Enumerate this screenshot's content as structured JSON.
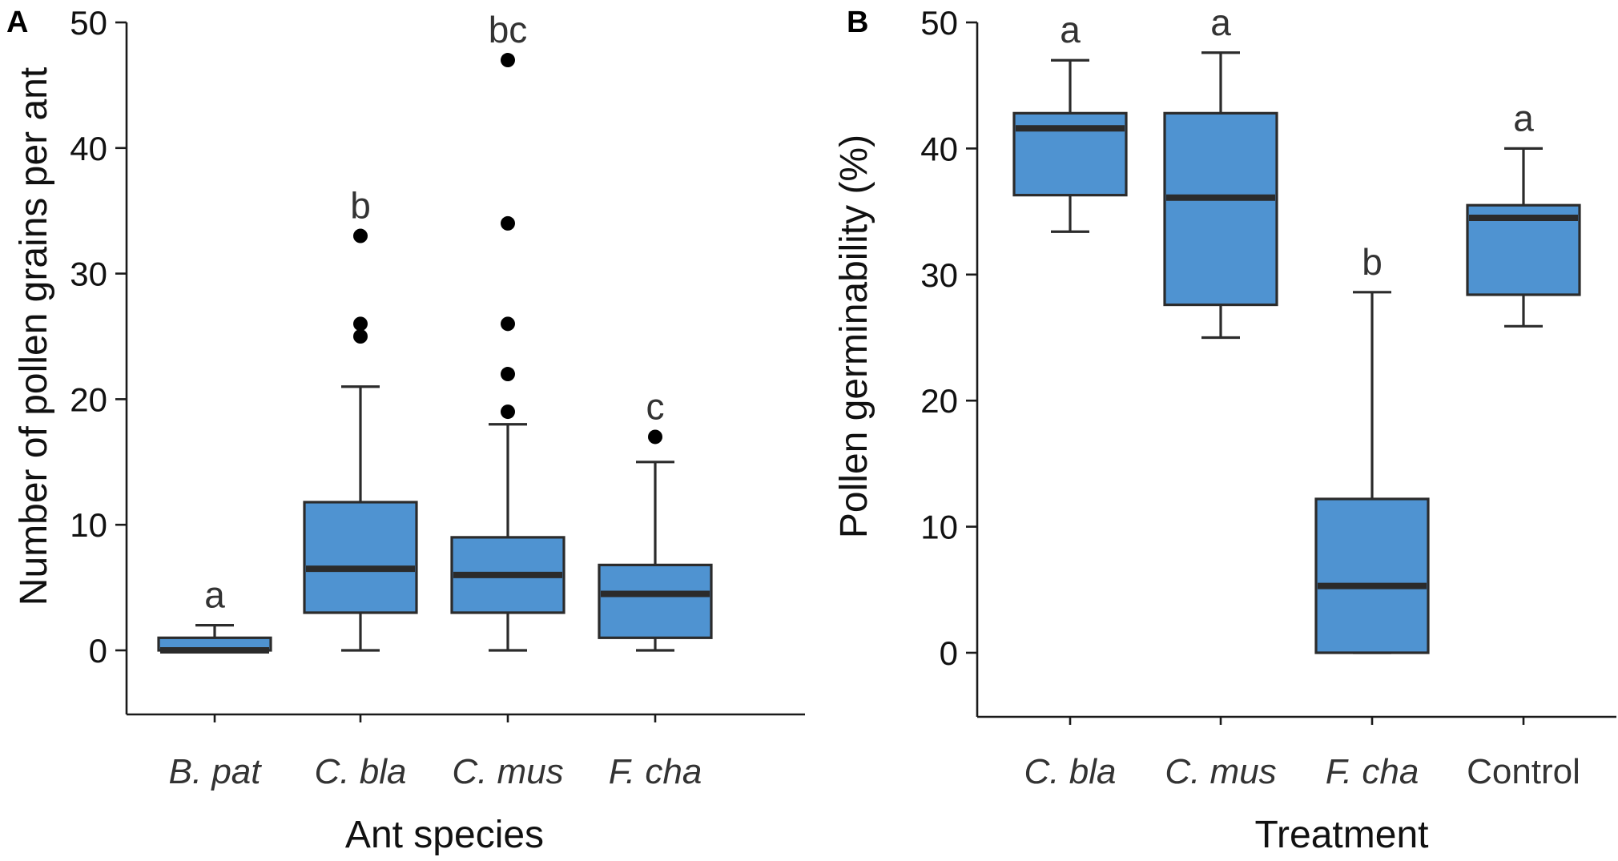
{
  "chart_data": [
    {
      "type": "boxplot",
      "panel_label": "A",
      "xlabel": "Ant species",
      "ylabel": "Number of pollen grains per ant",
      "ylim": [
        -5,
        50
      ],
      "yticks": [
        0,
        10,
        20,
        30,
        40,
        50
      ],
      "series": [
        {
          "category": "B. pat",
          "italic": true,
          "whisker_low": 0,
          "q1": 0,
          "median": 0,
          "q3": 1,
          "whisker_high": 2,
          "outliers": [],
          "letter": "a"
        },
        {
          "category": "C. bla",
          "italic": true,
          "whisker_low": 0,
          "q1": 3,
          "median": 6.5,
          "q3": 11.8,
          "whisker_high": 21,
          "outliers": [
            25,
            26,
            33
          ],
          "letter": "b"
        },
        {
          "category": "C. mus",
          "italic": true,
          "whisker_low": 0,
          "q1": 3,
          "median": 6,
          "q3": 9,
          "whisker_high": 18,
          "outliers": [
            19,
            22,
            26,
            34,
            47
          ],
          "letter": "bc"
        },
        {
          "category": "F. cha",
          "italic": true,
          "whisker_low": 0,
          "q1": 1,
          "median": 4.5,
          "q3": 6.8,
          "whisker_high": 15,
          "outliers": [
            17
          ],
          "letter": "c"
        }
      ]
    },
    {
      "type": "boxplot",
      "panel_label": "B",
      "xlabel": "Treatment",
      "ylabel": "Pollen germinability (%)",
      "ylim": [
        -5,
        50
      ],
      "yticks": [
        0,
        10,
        20,
        30,
        40,
        50
      ],
      "series": [
        {
          "category": "C. bla",
          "italic": true,
          "whisker_low": 33.4,
          "q1": 36.3,
          "median": 41.6,
          "q3": 42.8,
          "whisker_high": 47,
          "outliers": [],
          "letter": "a"
        },
        {
          "category": "C. mus",
          "italic": true,
          "whisker_low": 25,
          "q1": 27.6,
          "median": 36.1,
          "q3": 42.8,
          "whisker_high": 47.6,
          "outliers": [],
          "letter": "a"
        },
        {
          "category": "F. cha",
          "italic": true,
          "whisker_low": 0,
          "q1": 0,
          "median": 5.3,
          "q3": 12.2,
          "whisker_high": 28.6,
          "outliers": [],
          "letter": "b"
        },
        {
          "category": "Control",
          "italic": false,
          "whisker_low": 25.9,
          "q1": 28.4,
          "median": 34.5,
          "q3": 35.5,
          "whisker_high": 40,
          "outliers": [],
          "letter": "a"
        }
      ]
    }
  ]
}
